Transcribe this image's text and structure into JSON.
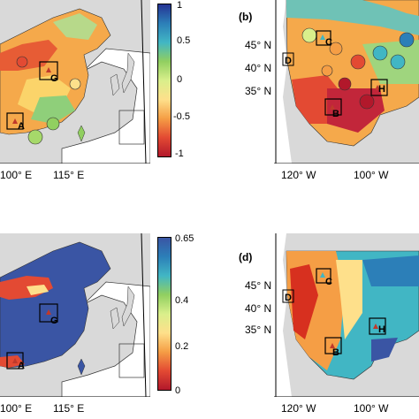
{
  "panels": {
    "a": {
      "lon_ticks": [
        "100° E",
        "115° E"
      ],
      "sites": [
        "A",
        "G"
      ]
    },
    "b": {
      "label": "(b)",
      "lon_ticks": [
        "120° W",
        "100° W"
      ],
      "lat_ticks": [
        "45° N",
        "40° N",
        "35° N"
      ],
      "sites": [
        "B",
        "C",
        "D",
        "H"
      ]
    },
    "c": {
      "lon_ticks": [
        "100° E",
        "115° E"
      ],
      "sites": [
        "A",
        "G"
      ]
    },
    "d": {
      "label": "(d)",
      "lon_ticks": [
        "120° W",
        "100° W"
      ],
      "lat_ticks": [
        "45° N",
        "40° N",
        "35° N"
      ],
      "sites": [
        "B",
        "C",
        "D",
        "H"
      ]
    }
  },
  "colorbars": {
    "top": {
      "ticks": [
        "1",
        "0.5",
        "0",
        "-0.5",
        "-1"
      ],
      "range": [
        -1,
        1
      ],
      "colors": [
        "#b2182b",
        "#e34a33",
        "#f59e45",
        "#fee08b",
        "#d9ef8b",
        "#91cf60",
        "#41b6c4",
        "#2c7fb8",
        "#253494"
      ]
    },
    "bottom": {
      "ticks": [
        "0.65",
        "0.4",
        "0.2",
        "0"
      ],
      "range": [
        0,
        0.65
      ],
      "colors": [
        "#b2182b",
        "#e34a33",
        "#f59e45",
        "#fee08b",
        "#d9ef8b",
        "#91cf60",
        "#41b6c4",
        "#2c7fb8",
        "#3a55a4"
      ]
    }
  },
  "colors": {
    "land": "#d9d9d9",
    "ocean": "#ffffff",
    "marker": "#c0392b"
  }
}
